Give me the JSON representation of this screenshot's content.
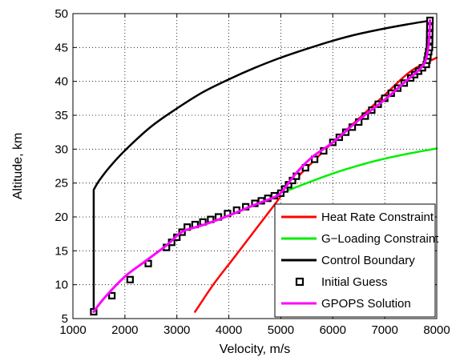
{
  "chart_data": {
    "type": "line",
    "xlabel": "Velocity, m/s",
    "ylabel": "Altitude, km",
    "xlim": [
      1000,
      8000
    ],
    "ylim": [
      5,
      50
    ],
    "xticks": [
      1000,
      2000,
      3000,
      4000,
      5000,
      6000,
      7000,
      8000
    ],
    "yticks": [
      5,
      10,
      15,
      20,
      25,
      30,
      35,
      40,
      45,
      50
    ],
    "grid": true,
    "legend_position": "bottom-right",
    "colors": {
      "heat": "#ff0000",
      "gload": "#00ee00",
      "control": "#000000",
      "guess": "#000000",
      "gpops": "#ff00ff"
    },
    "series": [
      {
        "name": "Heat Rate Constraint",
        "style": "line",
        "color": "#ff0000",
        "points": [
          [
            3350,
            6
          ],
          [
            3700,
            10
          ],
          [
            4100,
            14
          ],
          [
            4500,
            18
          ],
          [
            4850,
            21.5
          ],
          [
            5150,
            24.5
          ],
          [
            5600,
            28
          ],
          [
            6000,
            31
          ],
          [
            6500,
            34.5
          ],
          [
            7000,
            38
          ],
          [
            7500,
            41.5
          ],
          [
            8000,
            43.5
          ]
        ]
      },
      {
        "name": "G−Loading Constraint",
        "style": "line",
        "color": "#00ee00",
        "points": [
          [
            5000,
            23.5
          ],
          [
            5500,
            25
          ],
          [
            6000,
            26.4
          ],
          [
            6500,
            27.6
          ],
          [
            7000,
            28.6
          ],
          [
            7500,
            29.4
          ],
          [
            8000,
            30.1
          ]
        ]
      },
      {
        "name": "Control Boundary",
        "style": "line",
        "color": "#000000",
        "points": [
          [
            1400,
            6
          ],
          [
            1400,
            24
          ],
          [
            1500,
            25.3
          ],
          [
            1700,
            27.3
          ],
          [
            2000,
            29.8
          ],
          [
            2500,
            33.3
          ],
          [
            3000,
            36
          ],
          [
            3500,
            38.4
          ],
          [
            4000,
            40.3
          ],
          [
            4500,
            42
          ],
          [
            5000,
            43.5
          ],
          [
            5500,
            44.8
          ],
          [
            6000,
            46
          ],
          [
            6500,
            47
          ],
          [
            7000,
            47.8
          ],
          [
            7500,
            48.5
          ],
          [
            7900,
            49
          ]
        ]
      },
      {
        "name": "Initial Guess",
        "style": "markers",
        "color": "#000000",
        "points": [
          [
            1400,
            6
          ],
          [
            2800,
            15.5
          ],
          [
            3200,
            18.5
          ],
          [
            3800,
            20
          ],
          [
            4500,
            22
          ],
          [
            5000,
            23.5
          ],
          [
            5300,
            26
          ],
          [
            6000,
            31
          ],
          [
            6500,
            34
          ],
          [
            7000,
            37.5
          ],
          [
            7500,
            40.5
          ],
          [
            7800,
            42.5
          ],
          [
            7860,
            45
          ],
          [
            7870,
            49
          ]
        ]
      },
      {
        "name": "GPOPS Solution",
        "style": "line",
        "color": "#ff00ff",
        "points": [
          [
            1400,
            6
          ],
          [
            1600,
            8
          ],
          [
            2000,
            11.2
          ],
          [
            2400,
            13.5
          ],
          [
            2800,
            15.8
          ],
          [
            3000,
            17.2
          ],
          [
            3150,
            18
          ],
          [
            3500,
            18.8
          ],
          [
            4000,
            20.2
          ],
          [
            4500,
            21.8
          ],
          [
            4900,
            23
          ],
          [
            5050,
            24
          ],
          [
            5300,
            26.5
          ],
          [
            5600,
            28.8
          ],
          [
            6000,
            31
          ],
          [
            6500,
            34.3
          ],
          [
            7000,
            37.3
          ],
          [
            7400,
            40
          ],
          [
            7700,
            42
          ],
          [
            7800,
            43.5
          ],
          [
            7850,
            46
          ],
          [
            7870,
            49
          ]
        ]
      }
    ]
  }
}
